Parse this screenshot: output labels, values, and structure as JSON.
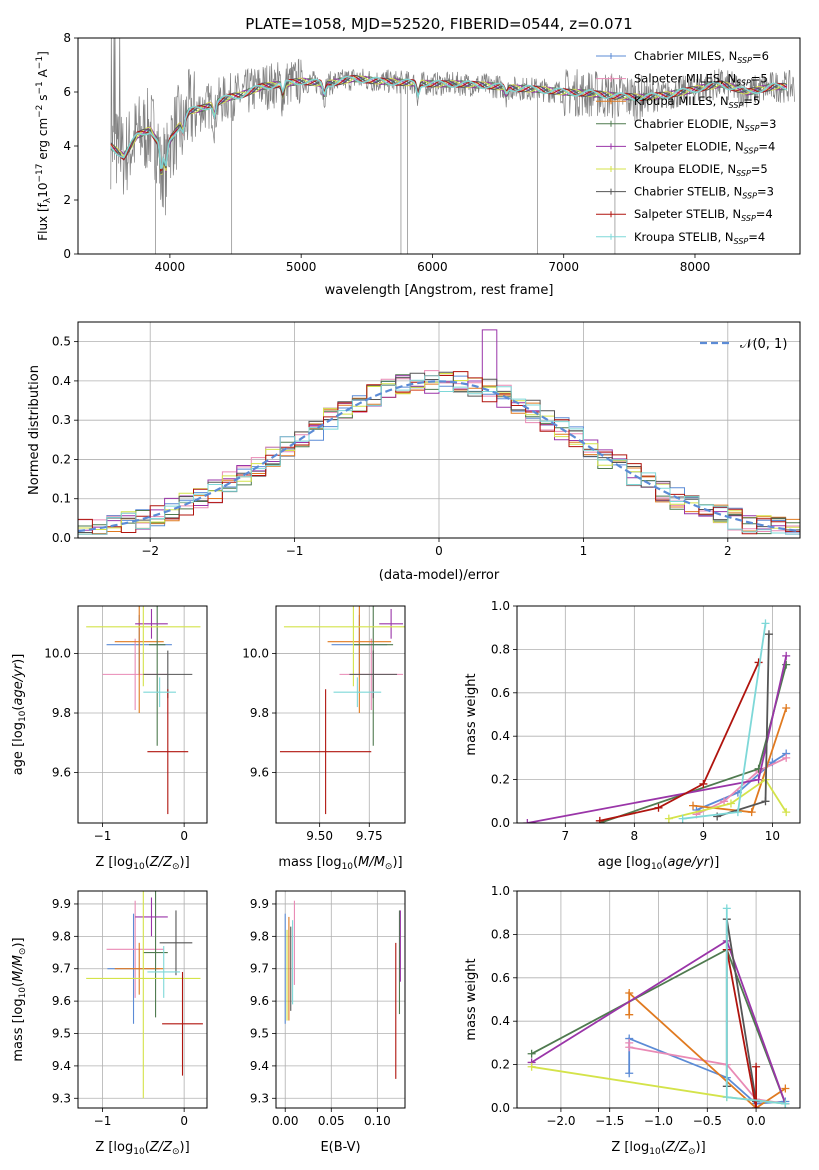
{
  "chart_data": [
    {
      "id": "spectrum",
      "type": "line",
      "title": "PLATE=1058, MJD=52520, FIBERID=0544, z=0.071",
      "xlabel": "wavelength [Angstrom, rest frame]",
      "ylabel": "Flux [f_λ 10^-17 erg cm^-2 s^-1 A^-1]",
      "xlim": [
        3300,
        8800
      ],
      "ylim": [
        0,
        8
      ],
      "xticks": [
        4000,
        5000,
        6000,
        7000,
        8000
      ],
      "yticks": [
        0,
        2,
        4,
        6,
        8
      ],
      "grid": false,
      "legend_position": "upper-right",
      "series": [
        {
          "name": "Chabrier MILES, N_SSP=6",
          "sub": "SSP",
          "pre": "Chabrier MILES, N",
          "post": "=6",
          "color": "#5b8bd6"
        },
        {
          "name": "Salpeter MILES, N_SSP=5",
          "sub": "SSP",
          "pre": "Salpeter MILES, N",
          "post": "=5",
          "color": "#e98ab5"
        },
        {
          "name": "Kroupa MILES, N_SSP=5",
          "sub": "SSP",
          "pre": "Kroupa MILES, N",
          "post": "=5",
          "color": "#e07a20"
        },
        {
          "name": "Chabrier ELODIE, N_SSP=3",
          "sub": "SSP",
          "pre": "Chabrier ELODIE, N",
          "post": "=3",
          "color": "#4f7a4f"
        },
        {
          "name": "Salpeter ELODIE, N_SSP=4",
          "sub": "SSP",
          "pre": "Salpeter ELODIE, N",
          "post": "=4",
          "color": "#9a35a8"
        },
        {
          "name": "Kroupa ELODIE, N_SSP=5",
          "sub": "SSP",
          "pre": "Kroupa ELODIE, N",
          "post": "=5",
          "color": "#d4e34a"
        },
        {
          "name": "Chabrier STELIB, N_SSP=3",
          "sub": "SSP",
          "pre": "Chabrier STELIB, N",
          "post": "=3",
          "color": "#555555"
        },
        {
          "name": "Salpeter STELIB, N_SSP=4",
          "sub": "SSP",
          "pre": "Salpeter STELIB, N",
          "post": "=4",
          "color": "#b0140e"
        },
        {
          "name": "Kroupa STELIB, N_SSP=4",
          "sub": "SSP",
          "pre": "Kroupa STELIB, N",
          "post": "=4",
          "color": "#7ed8d8"
        }
      ],
      "data_color": "#808080",
      "continuum": {
        "x": [
          3550,
          3650,
          3750,
          3850,
          3950,
          4050,
          4150,
          4250,
          4350,
          4450,
          4550,
          4700,
          4850,
          5000,
          5200,
          5400,
          5600,
          5800,
          6000,
          6200,
          6400,
          6600,
          6800,
          7000,
          7200,
          7400,
          7600,
          7800,
          8000,
          8200,
          8400,
          8600
        ],
        "y": [
          4.0,
          3.6,
          4.4,
          4.6,
          3.8,
          4.6,
          5.3,
          5.4,
          5.6,
          5.8,
          5.9,
          6.2,
          6.3,
          6.4,
          6.3,
          6.5,
          6.4,
          6.35,
          6.3,
          6.3,
          6.25,
          6.15,
          6.1,
          6.0,
          5.95,
          5.85,
          5.8,
          5.9,
          6.1,
          6.3,
          6.0,
          6.2
        ]
      }
    },
    {
      "id": "residuals",
      "type": "bar",
      "xlabel": "(data-model)/error",
      "ylabel": "Normed distribution",
      "xlim": [
        -2.5,
        2.5
      ],
      "ylim": [
        0,
        0.55
      ],
      "xticks": [
        -2,
        -1,
        0,
        1,
        2
      ],
      "yticks": [
        0.0,
        0.1,
        0.2,
        0.3,
        0.4,
        0.5
      ],
      "grid": true,
      "legend_position": "upper-right",
      "normal_curve": {
        "label": "𝒩(0, 1)",
        "mean": 0,
        "sigma": 1,
        "color": "#5b8bd6"
      },
      "bin_width": 0.1,
      "histogram_peak": {
        "x": 0.35,
        "y": 0.53
      }
    },
    {
      "id": "age-Z",
      "type": "scatter",
      "xlabel": "Z [log10(Z/Z⊙)]",
      "ylabel": "age [log10(age/yr)]",
      "xlim": [
        -1.3,
        0.28
      ],
      "ylim": [
        9.43,
        10.16
      ],
      "xticks": [
        -1,
        0
      ],
      "yticks": [
        9.6,
        9.8,
        10.0
      ],
      "grid": true,
      "points": [
        {
          "color": "#5b8bd6",
          "x": -0.55,
          "xerr": 0.4,
          "y": 10.03,
          "yerr": 0.1
        },
        {
          "color": "#e98ab5",
          "x": -0.6,
          "xerr": 0.4,
          "y": 9.93,
          "yerr": 0.12
        },
        {
          "color": "#e07a20",
          "x": -0.55,
          "xerr": 0.3,
          "y": 10.04,
          "yerr": 0.24
        },
        {
          "color": "#4f7a4f",
          "x": -0.33,
          "xerr": 0.1,
          "y": 10.03,
          "yerr": 0.34
        },
        {
          "color": "#9a35a8",
          "x": -0.4,
          "xerr": 0.2,
          "y": 10.1,
          "yerr": 0.05
        },
        {
          "color": "#d4e34a",
          "x": -0.5,
          "xerr": 0.7,
          "y": 10.09,
          "yerr": 0.2
        },
        {
          "color": "#555555",
          "x": -0.2,
          "xerr": 0.3,
          "y": 9.93,
          "yerr": 0.08
        },
        {
          "color": "#b0140e",
          "x": -0.2,
          "xerr": 0.25,
          "y": 9.67,
          "yerr": 0.21
        },
        {
          "color": "#7ed8d8",
          "x": -0.3,
          "xerr": 0.2,
          "y": 9.87,
          "yerr": 0.05
        }
      ]
    },
    {
      "id": "age-mass",
      "type": "scatter",
      "xlabel": "mass [log10(M/M⊙)]",
      "ylabel": "",
      "xlim": [
        9.28,
        9.93
      ],
      "ylim": [
        9.43,
        10.16
      ],
      "xticks": [
        9.5,
        9.75
      ],
      "yticks": [
        9.6,
        9.8,
        10.0
      ],
      "grid": true,
      "points": [
        {
          "color": "#5b8bd6",
          "x": 9.7,
          "xerr": 0.14,
          "y": 10.03,
          "yerr": 0.1
        },
        {
          "color": "#e98ab5",
          "x": 9.76,
          "xerr": 0.16,
          "y": 9.93,
          "yerr": 0.12
        },
        {
          "color": "#e07a20",
          "x": 9.7,
          "xerr": 0.16,
          "y": 10.04,
          "yerr": 0.24
        },
        {
          "color": "#4f7a4f",
          "x": 9.77,
          "xerr": 0.1,
          "y": 10.03,
          "yerr": 0.34
        },
        {
          "color": "#9a35a8",
          "x": 9.86,
          "xerr": 0.06,
          "y": 10.1,
          "yerr": 0.05
        },
        {
          "color": "#d4e34a",
          "x": 9.67,
          "xerr": 0.35,
          "y": 10.09,
          "yerr": 0.2
        },
        {
          "color": "#555555",
          "x": 9.77,
          "xerr": 0.12,
          "y": 9.93,
          "yerr": 0.08
        },
        {
          "color": "#b0140e",
          "x": 9.53,
          "xerr": 0.23,
          "y": 9.67,
          "yerr": 0.21
        },
        {
          "color": "#7ed8d8",
          "x": 9.69,
          "xerr": 0.12,
          "y": 9.87,
          "yerr": 0.05
        }
      ]
    },
    {
      "id": "weight-age",
      "type": "line",
      "xlabel": "age [log10(age/yr)]",
      "ylabel": "mass weight",
      "xlim": [
        6.3,
        10.4
      ],
      "ylim": [
        0,
        1.0
      ],
      "xticks": [
        7,
        8,
        9,
        10
      ],
      "yticks": [
        0.0,
        0.2,
        0.4,
        0.6,
        0.8,
        1.0
      ],
      "grid": true,
      "series": [
        {
          "color": "#5b8bd6",
          "x": [
            8.9,
            9.5,
            10.0,
            10.2
          ],
          "y": [
            0.06,
            0.14,
            0.28,
            0.32
          ]
        },
        {
          "color": "#e98ab5",
          "x": [
            8.9,
            9.3,
            9.8,
            10.2
          ],
          "y": [
            0.04,
            0.1,
            0.24,
            0.3
          ]
        },
        {
          "color": "#e07a20",
          "x": [
            8.85,
            9.7,
            10.2
          ],
          "y": [
            0.08,
            0.05,
            0.53
          ]
        },
        {
          "color": "#4f7a4f",
          "x": [
            7.5,
            9.8,
            10.2
          ],
          "y": [
            0.0,
            0.25,
            0.73
          ]
        },
        {
          "color": "#9a35a8",
          "x": [
            6.45,
            9.8,
            10.2
          ],
          "y": [
            0.0,
            0.2,
            0.77
          ]
        },
        {
          "color": "#d4e34a",
          "x": [
            8.5,
            9.4,
            9.9,
            10.2
          ],
          "y": [
            0.02,
            0.09,
            0.2,
            0.05
          ]
        },
        {
          "color": "#555555",
          "x": [
            9.2,
            9.9,
            9.95
          ],
          "y": [
            0.03,
            0.1,
            0.87
          ]
        },
        {
          "color": "#b0140e",
          "x": [
            7.5,
            8.35,
            9.0,
            9.8
          ],
          "y": [
            0.01,
            0.07,
            0.18,
            0.74
          ]
        },
        {
          "color": "#7ed8d8",
          "x": [
            8.7,
            9.5,
            9.9
          ],
          "y": [
            0.02,
            0.05,
            0.92
          ]
        }
      ]
    },
    {
      "id": "mass-Z",
      "type": "scatter",
      "xlabel": "Z [log10(Z/Z⊙)]",
      "ylabel": "mass [log10(M/M⊙)]",
      "xlim": [
        -1.3,
        0.28
      ],
      "ylim": [
        9.27,
        9.94
      ],
      "xticks": [
        -1,
        0
      ],
      "yticks": [
        9.3,
        9.4,
        9.5,
        9.6,
        9.7,
        9.8,
        9.9
      ],
      "grid": true,
      "points": [
        {
          "color": "#5b8bd6",
          "x": -0.62,
          "xerr": 0.32,
          "y": 9.7,
          "yerr": 0.17
        },
        {
          "color": "#e98ab5",
          "x": -0.6,
          "xerr": 0.35,
          "y": 9.76,
          "yerr": 0.15
        },
        {
          "color": "#e07a20",
          "x": -0.55,
          "xerr": 0.3,
          "y": 9.7,
          "yerr": 0.08
        },
        {
          "color": "#4f7a4f",
          "x": -0.35,
          "xerr": 0.15,
          "y": 9.75,
          "yerr": 0.2
        },
        {
          "color": "#9a35a8",
          "x": -0.4,
          "xerr": 0.2,
          "y": 9.86,
          "yerr": 0.06
        },
        {
          "color": "#d4e34a",
          "x": -0.5,
          "xerr": 0.7,
          "y": 9.67,
          "yerr": 0.37
        },
        {
          "color": "#555555",
          "x": -0.1,
          "xerr": 0.2,
          "y": 9.78,
          "yerr": 0.1
        },
        {
          "color": "#b0140e",
          "x": -0.02,
          "xerr": 0.25,
          "y": 9.53,
          "yerr": 0.16
        },
        {
          "color": "#7ed8d8",
          "x": -0.25,
          "xerr": 0.2,
          "y": 9.69,
          "yerr": 0.08
        }
      ]
    },
    {
      "id": "mass-ebv",
      "type": "scatter",
      "xlabel": "E(B-V)",
      "ylabel": "",
      "xlim": [
        -0.01,
        0.13
      ],
      "ylim": [
        9.27,
        9.94
      ],
      "xticks": [
        0.0,
        0.05,
        0.1
      ],
      "xtick_labels": [
        "0.00",
        "0.05",
        "0.10"
      ],
      "yticks": [
        9.3,
        9.4,
        9.5,
        9.6,
        9.7,
        9.8,
        9.9
      ],
      "grid": true,
      "points": [
        {
          "color": "#5b8bd6",
          "x": 0.0,
          "y": 9.7,
          "yerr": 0.17
        },
        {
          "color": "#e98ab5",
          "x": 0.01,
          "y": 9.78,
          "yerr": 0.13
        },
        {
          "color": "#e07a20",
          "x": 0.004,
          "y": 9.7,
          "yerr": 0.16
        },
        {
          "color": "#4f7a4f",
          "x": 0.124,
          "y": 9.72,
          "yerr": 0.16
        },
        {
          "color": "#9a35a8",
          "x": 0.125,
          "y": 9.77,
          "yerr": 0.11
        },
        {
          "color": "#d4e34a",
          "x": 0.002,
          "y": 9.68,
          "yerr": 0.14
        },
        {
          "color": "#555555",
          "x": 0.006,
          "y": 9.7,
          "yerr": 0.13
        },
        {
          "color": "#b0140e",
          "x": 0.12,
          "y": 9.57,
          "yerr": 0.21
        },
        {
          "color": "#7ed8d8",
          "x": 0.008,
          "y": 9.72,
          "yerr": 0.13
        }
      ]
    },
    {
      "id": "weight-Z",
      "type": "line",
      "xlabel": "Z [log10(Z/Z⊙)]",
      "ylabel": "mass weight",
      "xlim": [
        -2.45,
        0.45
      ],
      "ylim": [
        0,
        1.0
      ],
      "xticks": [
        -2.0,
        -1.5,
        -1.0,
        -0.5,
        0.0
      ],
      "xtick_labels": [
        "−2.0",
        "−1.5",
        "−1.0",
        "−0.5",
        "0.0"
      ],
      "yticks": [
        0.0,
        0.2,
        0.4,
        0.6,
        0.8,
        1.0
      ],
      "grid": true,
      "series": [
        {
          "color": "#5b8bd6",
          "x": [
            -1.3,
            -1.3,
            -0.3,
            0.0,
            0.3
          ],
          "y": [
            0.16,
            0.32,
            0.14,
            0.02,
            0.03
          ]
        },
        {
          "color": "#e98ab5",
          "x": [
            -1.3,
            -1.3,
            -0.3,
            0.0,
            0.3
          ],
          "y": [
            0.3,
            0.28,
            0.2,
            0.04,
            0.02
          ]
        },
        {
          "color": "#e07a20",
          "x": [
            -1.3,
            -1.3,
            0.0,
            0.3
          ],
          "y": [
            0.43,
            0.53,
            0.0,
            0.09
          ]
        },
        {
          "color": "#4f7a4f",
          "x": [
            -2.3,
            -0.3,
            0.3
          ],
          "y": [
            0.25,
            0.73,
            0.02
          ]
        },
        {
          "color": "#9a35a8",
          "x": [
            -2.3,
            -0.3,
            0.3
          ],
          "y": [
            0.21,
            0.77,
            0.02
          ]
        },
        {
          "color": "#d4e34a",
          "x": [
            -2.3,
            -0.3,
            0.3
          ],
          "y": [
            0.19,
            0.05,
            0.02
          ]
        },
        {
          "color": "#555555",
          "x": [
            -0.3,
            -0.3,
            0.0
          ],
          "y": [
            0.1,
            0.87,
            0.03
          ]
        },
        {
          "color": "#b0140e",
          "x": [
            -0.3,
            0.0,
            0.0
          ],
          "y": [
            0.73,
            0.0,
            0.19
          ]
        },
        {
          "color": "#7ed8d8",
          "x": [
            -0.3,
            -0.3,
            0.3
          ],
          "y": [
            0.92,
            0.05,
            0.02
          ]
        }
      ]
    }
  ]
}
